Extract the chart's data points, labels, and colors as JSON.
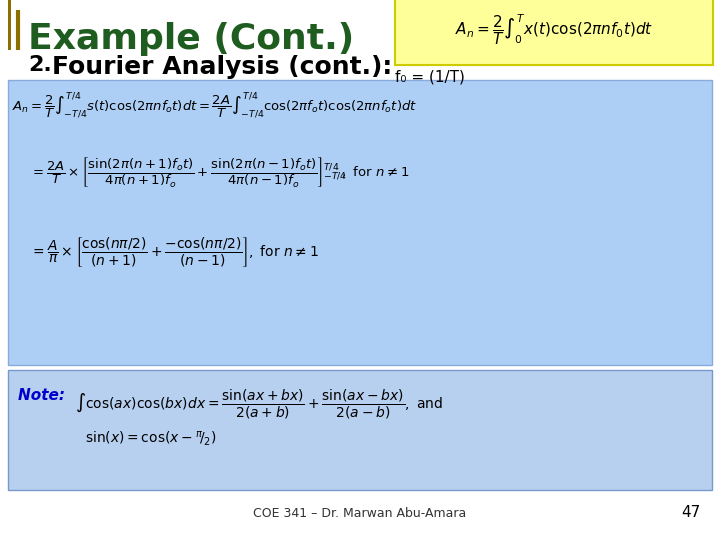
{
  "title": "Example (Cont.)",
  "subtitle_num": "2.",
  "subtitle_text": "Fourier Analysis (cont.):",
  "footer_text": "COE 341 – Dr. Marwan Abu-Amara",
  "page_num": "47",
  "bg_color": "#ffffff",
  "title_color": "#1f5c1f",
  "title_bg_left": "#8B8B00",
  "header_formula_bg": "#ffff99",
  "blue_box_color": "#aecff5",
  "note_box_color": "#b8d0f0",
  "note_label_color": "#0000cc",
  "f0_text": "f₀ = (1/T)",
  "main_eq1": "$A_n = \\dfrac{2}{T}\\int_{-T/4}^{T/4} s\\left(t\\right)\\cos(2\\pi n f_o t)dt = \\dfrac{2A}{T}\\int_{-T/4}^{T/4}\\cos(2\\pi f_o t)\\cos(2\\pi n f_o t)dt$",
  "main_eq2": "$= \\dfrac{2A}{T} \\times \\left[\\dfrac{\\sin(2\\pi(n+1)f_o t)}{4\\pi(n+1)f_o} + \\dfrac{\\sin(2\\pi(n-1)f_o t)}{4\\pi(n-1)f_o}\\right]_{-T/4}^{T/4}\\!\\!,\\ \\text{for}\\ n \\neq 1$",
  "main_eq3": "$= \\dfrac{A}{\\pi} \\times \\left[\\dfrac{\\cos(n\\pi/2)}{(n+1)} + \\dfrac{-\\cos(n\\pi/2)}{(n-1)}\\right],\\ \\text{for}\\ n \\neq 1$",
  "header_formula": "$A_n = \\dfrac{2}{T}\\int_0^{T} x(t)\\cos(2\\pi n f_0 t)dt$",
  "note_eq": "$\\int\\cos(ax)\\cos(bx)dx = \\dfrac{\\sin(ax+bx)}{2(a+b)} + \\dfrac{\\sin(ax-bx)}{2(a-b)},\\ \\text{and}$",
  "note_eq2": "$\\sin(x) = \\cos\\!\\left(x - {^{\\pi}\\!/_{2}}\\right)$",
  "note_prefix": "Note: "
}
